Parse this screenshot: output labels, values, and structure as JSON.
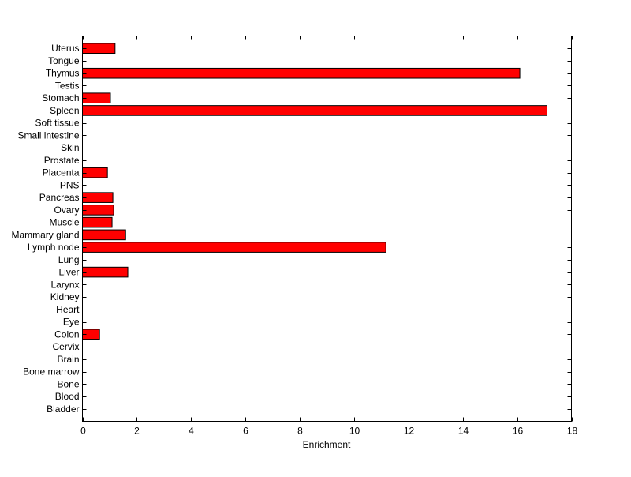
{
  "chart_data": {
    "type": "bar",
    "orientation": "horizontal",
    "title": "",
    "xlabel": "Enrichment",
    "ylabel": "",
    "xlim": [
      0,
      18
    ],
    "xticks": [
      0,
      2,
      4,
      6,
      8,
      10,
      12,
      14,
      16,
      18
    ],
    "grid": false,
    "bar_color": "#ff0000",
    "categories": [
      "Bladder",
      "Blood",
      "Bone",
      "Bone marrow",
      "Brain",
      "Cervix",
      "Colon",
      "Eye",
      "Heart",
      "Kidney",
      "Larynx",
      "Liver",
      "Lung",
      "Lymph node",
      "Mammary gland",
      "Muscle",
      "Ovary",
      "Pancreas",
      "PNS",
      "Placenta",
      "Prostate",
      "Skin",
      "Small intestine",
      "Soft tissue",
      "Spleen",
      "Stomach",
      "Testis",
      "Thymus",
      "Tongue",
      "Uterus"
    ],
    "values": [
      0,
      0,
      0,
      0,
      0,
      0,
      0.63,
      0,
      0,
      0,
      0,
      1.67,
      0,
      11.17,
      1.59,
      1.09,
      1.15,
      1.12,
      0,
      0.92,
      0,
      0,
      0,
      0,
      17.1,
      1.03,
      0,
      16.1,
      0,
      1.2
    ]
  }
}
